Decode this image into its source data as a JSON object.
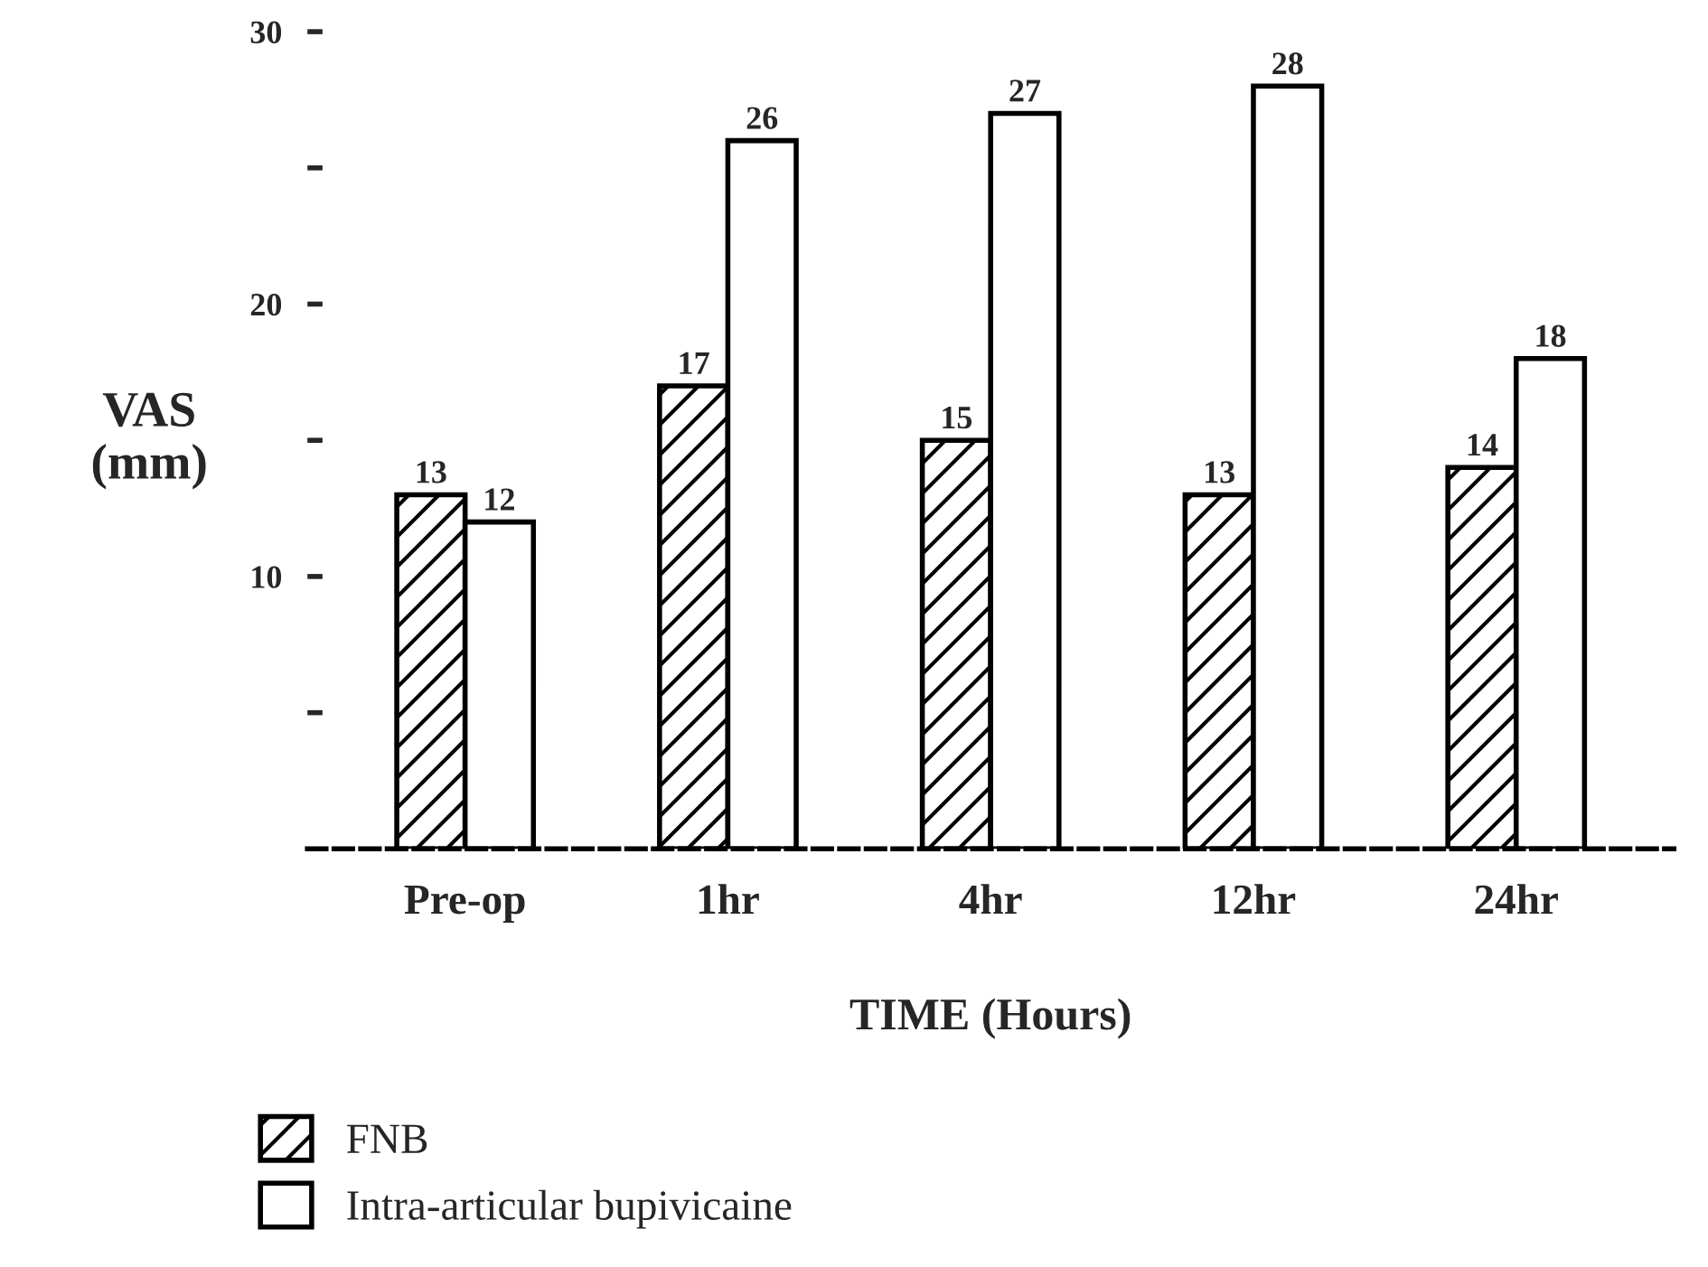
{
  "chart_data": {
    "type": "bar",
    "xlabel": "TIME (Hours)",
    "ylabel": "VAS\n(mm)",
    "categories": [
      "Pre-op",
      "1hr",
      "4hr",
      "12hr",
      "24hr"
    ],
    "series": [
      {
        "name": "FNB",
        "color": "#000000",
        "values": [
          13,
          17,
          15,
          13,
          14
        ]
      },
      {
        "name": "Intra-articular bupivicaine",
        "color": "#ffffff",
        "values": [
          12,
          26,
          27,
          28,
          18
        ]
      }
    ],
    "ylim": [
      0,
      30
    ],
    "yticks": [
      {
        "value": 5,
        "label": null
      },
      10,
      {
        "value": 15,
        "label": null
      },
      20,
      {
        "value": 25,
        "label": null
      },
      30
    ],
    "data_labels": true,
    "legend": "bottom left",
    "grid": false
  }
}
